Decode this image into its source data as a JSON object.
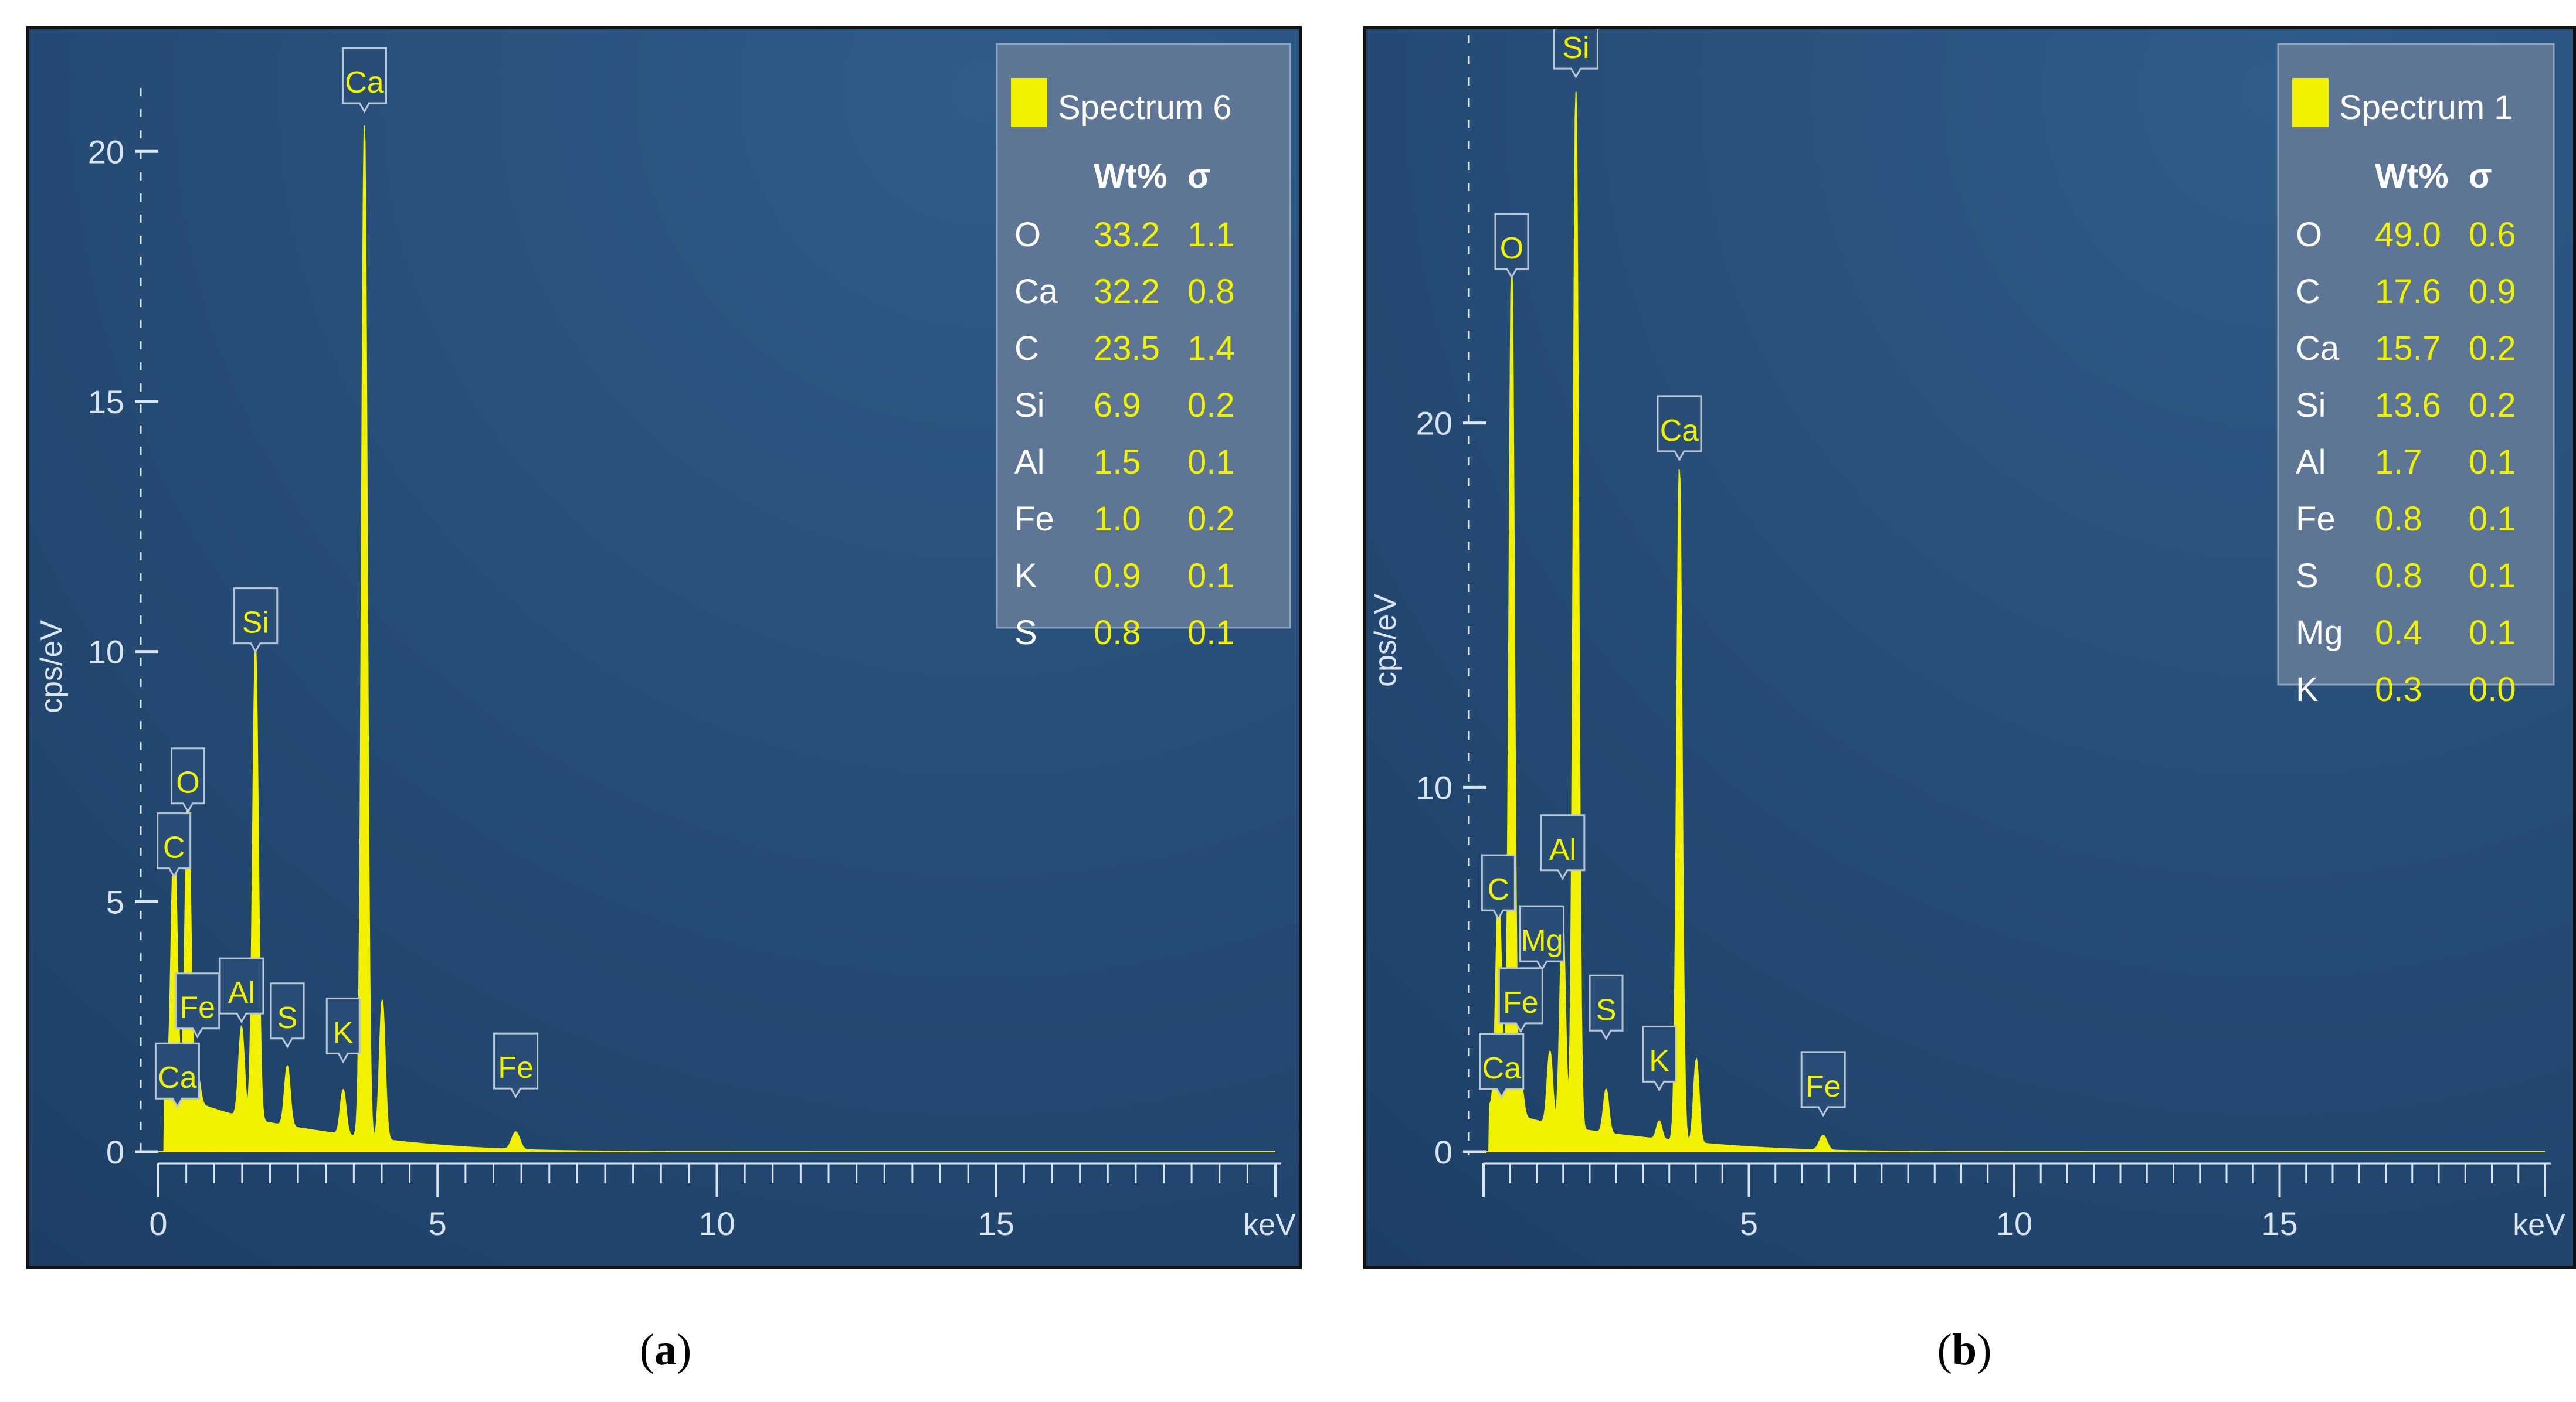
{
  "colors": {
    "bg_light": "#2f5c88",
    "bg_dark": "#1d3f66",
    "axis": "#d9e4ef",
    "spectrum": "#f2f200",
    "legend_bg": "#5d7696",
    "legend_text": "#ffffff",
    "value_text": "#f2f200",
    "tag_bg": "#284d76",
    "tag_border": "#b8c6d6"
  },
  "chart_data": [
    {
      "type": "line",
      "caption_letter": "a",
      "xlabel": "keV",
      "ylabel": "cps/eV",
      "xlim": [
        0,
        20
      ],
      "ylim": [
        0,
        20.8
      ],
      "x_ticks": [
        "0",
        "5",
        "10",
        "15"
      ],
      "y_ticks": [
        "0",
        "5",
        "10",
        "15",
        "20"
      ],
      "legend": {
        "series_name": "Spectrum 6",
        "headers": [
          "Wt%",
          "σ"
        ],
        "rows": [
          {
            "element": "O",
            "wt": "33.2",
            "sigma": "1.1"
          },
          {
            "element": "Ca",
            "wt": "32.2",
            "sigma": "0.8"
          },
          {
            "element": "C",
            "wt": "23.5",
            "sigma": "1.4"
          },
          {
            "element": "Si",
            "wt": "6.9",
            "sigma": "0.2"
          },
          {
            "element": "Al",
            "wt": "1.5",
            "sigma": "0.1"
          },
          {
            "element": "Fe",
            "wt": "1.0",
            "sigma": "0.2"
          },
          {
            "element": "K",
            "wt": "0.9",
            "sigma": "0.1"
          },
          {
            "element": "S",
            "wt": "0.8",
            "sigma": "0.1"
          }
        ]
      },
      "peaks": [
        {
          "label": "C",
          "x": 0.28,
          "y": 5.0,
          "width": 0.05
        },
        {
          "label": "O",
          "x": 0.53,
          "y": 6.3,
          "width": 0.05
        },
        {
          "label": "Fe",
          "x": 0.7,
          "y": 0.6,
          "width": 0.05
        },
        {
          "label": "Ca",
          "x": 0.34,
          "y": 0.5,
          "width": 0.04
        },
        {
          "label": "Al",
          "x": 1.49,
          "y": 1.8,
          "width": 0.05
        },
        {
          "label": "Si",
          "x": 1.74,
          "y": 9.5,
          "width": 0.05
        },
        {
          "label": "S",
          "x": 2.31,
          "y": 1.2,
          "width": 0.05
        },
        {
          "label": "K",
          "x": 3.31,
          "y": 0.9,
          "width": 0.05
        },
        {
          "label": "Ca",
          "x": 3.69,
          "y": 20.3,
          "width": 0.05
        },
        {
          "label": "",
          "x": 4.01,
          "y": 2.8,
          "width": 0.05
        },
        {
          "label": "Fe",
          "x": 6.4,
          "y": 0.35,
          "width": 0.07
        }
      ],
      "tags": [
        {
          "label": "Ca",
          "x": 3.69,
          "y": 20.8
        },
        {
          "label": "Si",
          "x": 1.74,
          "y": 10.0
        },
        {
          "label": "O",
          "x": 0.53,
          "y": 6.8
        },
        {
          "label": "C",
          "x": 0.28,
          "y": 5.5
        },
        {
          "label": "Fe",
          "x": 0.7,
          "y": 2.3
        },
        {
          "label": "Al",
          "x": 1.49,
          "y": 2.6
        },
        {
          "label": "S",
          "x": 2.31,
          "y": 2.1
        },
        {
          "label": "K",
          "x": 3.31,
          "y": 1.8
        },
        {
          "label": "Ca",
          "x": 0.34,
          "y": 0.9
        },
        {
          "label": "Fe",
          "x": 6.4,
          "y": 1.1
        }
      ]
    },
    {
      "type": "line",
      "caption_letter": "b",
      "xlabel": "keV",
      "ylabel": "cps/eV",
      "xlim": [
        0,
        20
      ],
      "ylim": [
        0,
        30
      ],
      "x_ticks": [
        "5",
        "10",
        "15"
      ],
      "y_ticks": [
        "0",
        "10",
        "20"
      ],
      "legend": {
        "series_name": "Spectrum 1",
        "headers": [
          "Wt%",
          "σ"
        ],
        "rows": [
          {
            "element": "O",
            "wt": "49.0",
            "sigma": "0.6"
          },
          {
            "element": "C",
            "wt": "17.6",
            "sigma": "0.9"
          },
          {
            "element": "Ca",
            "wt": "15.7",
            "sigma": "0.2"
          },
          {
            "element": "Si",
            "wt": "13.6",
            "sigma": "0.2"
          },
          {
            "element": "Al",
            "wt": "1.7",
            "sigma": "0.1"
          },
          {
            "element": "Fe",
            "wt": "0.8",
            "sigma": "0.1"
          },
          {
            "element": "S",
            "wt": "0.8",
            "sigma": "0.1"
          },
          {
            "element": "Mg",
            "wt": "0.4",
            "sigma": "0.1"
          },
          {
            "element": "K",
            "wt": "0.3",
            "sigma": "0.0"
          }
        ]
      },
      "peaks": [
        {
          "label": "C",
          "x": 0.28,
          "y": 5.8,
          "width": 0.05
        },
        {
          "label": "O",
          "x": 0.53,
          "y": 23.5,
          "width": 0.05
        },
        {
          "label": "Fe",
          "x": 0.7,
          "y": 1.0,
          "width": 0.05
        },
        {
          "label": "Ca",
          "x": 0.34,
          "y": 0.8,
          "width": 0.04
        },
        {
          "label": "Mg",
          "x": 1.25,
          "y": 2.0,
          "width": 0.05
        },
        {
          "label": "Al",
          "x": 1.49,
          "y": 6.0,
          "width": 0.05
        },
        {
          "label": "Si",
          "x": 1.74,
          "y": 28.5,
          "width": 0.05
        },
        {
          "label": "S",
          "x": 2.31,
          "y": 1.2,
          "width": 0.05
        },
        {
          "label": "K",
          "x": 3.31,
          "y": 0.5,
          "width": 0.05
        },
        {
          "label": "Ca",
          "x": 3.69,
          "y": 18.5,
          "width": 0.05
        },
        {
          "label": "",
          "x": 4.01,
          "y": 2.3,
          "width": 0.05
        },
        {
          "label": "Fe",
          "x": 6.4,
          "y": 0.4,
          "width": 0.07
        }
      ],
      "tags": [
        {
          "label": "Si",
          "x": 1.74,
          "y": 29.5
        },
        {
          "label": "O",
          "x": 0.53,
          "y": 24.0
        },
        {
          "label": "Ca",
          "x": 3.69,
          "y": 19.0
        },
        {
          "label": "Al",
          "x": 1.49,
          "y": 7.5
        },
        {
          "label": "C",
          "x": 0.28,
          "y": 6.4
        },
        {
          "label": "Mg",
          "x": 1.1,
          "y": 5.0
        },
        {
          "label": "Fe",
          "x": 0.7,
          "y": 3.3
        },
        {
          "label": "S",
          "x": 2.31,
          "y": 3.1
        },
        {
          "label": "K",
          "x": 3.31,
          "y": 1.7
        },
        {
          "label": "Ca",
          "x": 0.34,
          "y": 1.5
        },
        {
          "label": "Fe",
          "x": 6.4,
          "y": 1.0
        }
      ]
    }
  ]
}
